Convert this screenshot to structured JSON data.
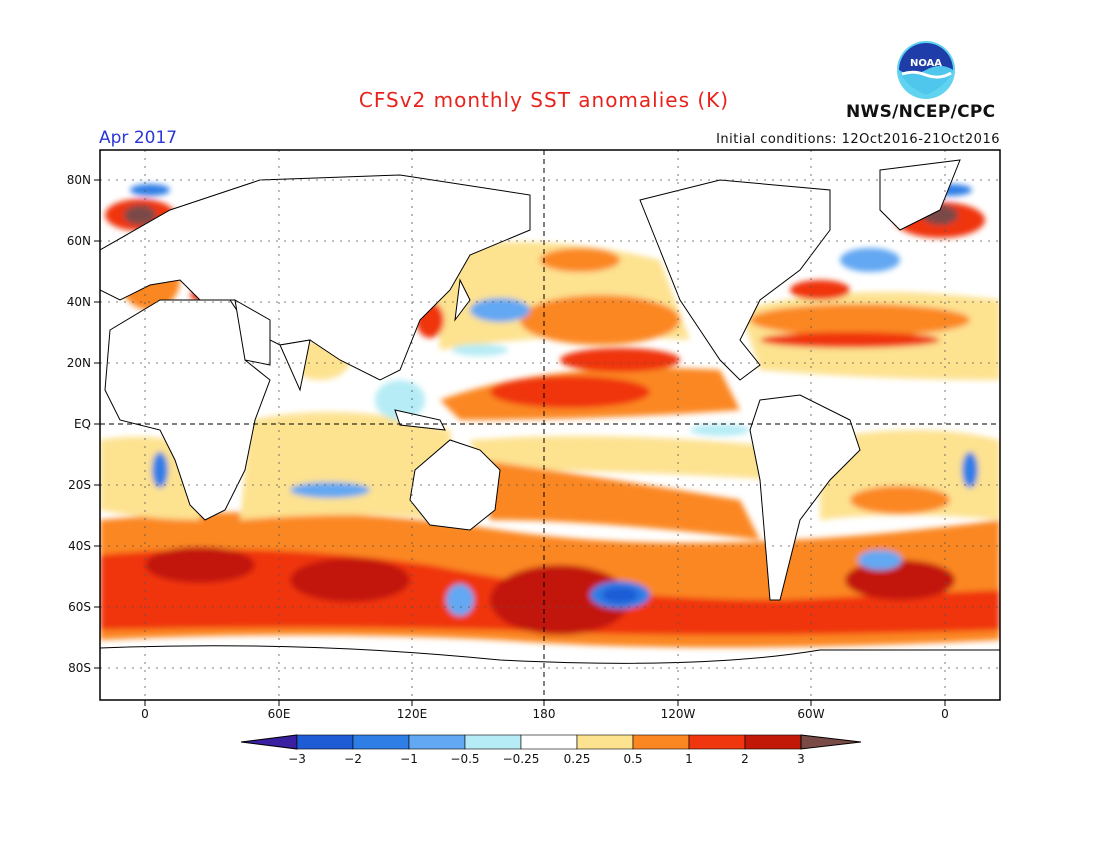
{
  "title": "CFSv2 monthly SST anomalies (K)",
  "valid_month": "Apr 2017",
  "initial_conditions": "Initial conditions: 12Oct2016-21Oct2016",
  "agency": "NWS/NCEP/CPC",
  "logo_text": "NOAA",
  "colors": {
    "title": "#e8231b",
    "month": "#2a36d8",
    "frame": "#000000",
    "land": "#ffffff",
    "grid": "#555555"
  },
  "lat_labels": [
    "80N",
    "60N",
    "40N",
    "20N",
    "EQ",
    "20S",
    "40S",
    "60S",
    "80S"
  ],
  "lon_labels": [
    "0",
    "60E",
    "120E",
    "180",
    "120W",
    "60W",
    "0"
  ],
  "colorbar": {
    "labels": [
      "-3",
      "-2",
      "-1",
      "-0.5",
      "-0.25",
      "0.25",
      "0.5",
      "1",
      "2",
      "3"
    ],
    "colors": [
      "#3a1fa0",
      "#1e5cd6",
      "#2f7ee6",
      "#63a8f2",
      "#b6ecf5",
      "#ffffff",
      "#fde290",
      "#fb8723",
      "#f0360f",
      "#c21808",
      "#c21808",
      "#7a4a46"
    ]
  },
  "chart_data": {
    "type": "heatmap",
    "title": "CFSv2 monthly SST anomalies (K)",
    "valid_month": "Apr 2017",
    "lon_range": [
      -20,
      380
    ],
    "lat_range": [
      -90,
      90
    ],
    "lat_ticks": [
      "80N",
      "60N",
      "40N",
      "20N",
      "EQ",
      "20S",
      "40S",
      "60S",
      "80S"
    ],
    "lon_ticks": [
      "0",
      "60E",
      "120E",
      "180",
      "120W",
      "60W",
      "0"
    ],
    "legend_levels": [
      -3,
      -2,
      -1,
      -0.5,
      -0.25,
      0.25,
      0.5,
      1,
      2,
      3
    ],
    "units": "K"
  }
}
